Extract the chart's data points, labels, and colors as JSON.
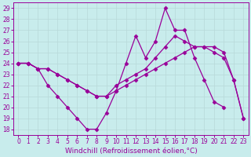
{
  "xlabel": "Windchill (Refroidissement éolien,°C)",
  "bg_color": "#c8ecec",
  "line_color": "#990099",
  "grid_color": "#aaaaaa",
  "xlim": [
    -0.5,
    23.5
  ],
  "ylim": [
    17.5,
    29.5
  ],
  "yticks": [
    18,
    19,
    20,
    21,
    22,
    23,
    24,
    25,
    26,
    27,
    28,
    29
  ],
  "xticks": [
    0,
    1,
    2,
    3,
    4,
    5,
    6,
    7,
    8,
    9,
    10,
    11,
    12,
    13,
    14,
    15,
    16,
    17,
    18,
    19,
    20,
    21,
    22,
    23
  ],
  "series": [
    {
      "x": [
        0,
        1,
        2,
        3,
        4,
        5,
        6,
        7,
        8,
        9,
        10,
        11,
        12,
        13,
        14,
        15,
        16,
        17,
        18,
        19,
        20,
        21
      ],
      "y": [
        24.0,
        24.0,
        23.5,
        22.0,
        21.0,
        20.0,
        19.0,
        18.0,
        18.0,
        19.5,
        21.5,
        24.0,
        26.5,
        24.5,
        26.0,
        29.0,
        27.0,
        27.0,
        24.5,
        22.5,
        20.5,
        20.0
      ]
    },
    {
      "x": [
        0,
        1,
        2,
        3,
        4,
        5,
        6,
        7,
        8,
        9,
        10,
        11,
        12,
        13,
        14,
        15,
        16,
        17,
        18,
        19,
        20,
        21,
        22,
        23
      ],
      "y": [
        24.0,
        24.0,
        23.5,
        23.5,
        23.0,
        22.5,
        22.0,
        21.5,
        21.0,
        21.0,
        21.5,
        22.0,
        22.5,
        23.0,
        23.5,
        24.0,
        24.5,
        25.0,
        25.5,
        25.5,
        25.0,
        24.5,
        22.5,
        19.0
      ]
    },
    {
      "x": [
        0,
        1,
        2,
        3,
        4,
        5,
        6,
        7,
        8,
        9,
        10,
        11,
        12,
        13,
        14,
        15,
        16,
        17,
        18,
        19,
        20,
        21,
        22,
        23
      ],
      "y": [
        24.0,
        24.0,
        23.5,
        23.5,
        23.0,
        22.5,
        22.0,
        21.5,
        21.0,
        21.0,
        22.0,
        22.5,
        23.0,
        23.5,
        24.5,
        25.5,
        26.5,
        26.0,
        25.5,
        25.5,
        25.5,
        25.0,
        22.5,
        19.0
      ]
    }
  ],
  "marker": "D",
  "markersize": 2.5,
  "linewidth": 0.9,
  "tick_fontsize": 5.5,
  "xlabel_fontsize": 6.5
}
